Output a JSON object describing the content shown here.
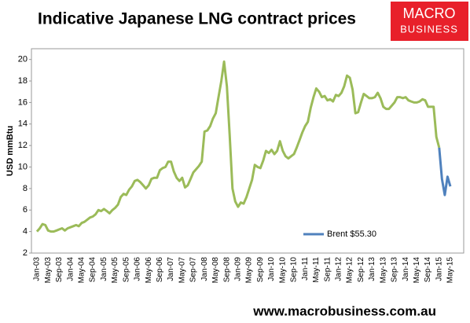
{
  "chart_data": {
    "type": "line",
    "title": "Indicative Japanese LNG contract prices",
    "y_label": "USD mmBtu",
    "categories": [
      "Jan-03",
      null,
      null,
      null,
      "May-03",
      null,
      null,
      null,
      "Sep-03",
      null,
      null,
      null,
      "Jan-04",
      null,
      null,
      null,
      "May-04",
      null,
      null,
      null,
      "Sep-04",
      null,
      null,
      null,
      "Jan-05",
      null,
      null,
      null,
      "May-05",
      null,
      null,
      null,
      "Sep-05",
      null,
      null,
      null,
      "Jan-06",
      null,
      null,
      null,
      "May-06",
      null,
      null,
      null,
      "Sep-06",
      null,
      null,
      null,
      "Jan-07",
      null,
      null,
      null,
      "May-07",
      null,
      null,
      null,
      "Sep-07",
      null,
      null,
      null,
      "Jan-08",
      null,
      null,
      null,
      "May-08",
      null,
      null,
      null,
      "Sep-08",
      null,
      null,
      null,
      "Jan-09",
      null,
      null,
      null,
      "May-09",
      null,
      null,
      null,
      "Sep-09",
      null,
      null,
      null,
      "Jan-10",
      null,
      null,
      null,
      "May-10",
      null,
      null,
      null,
      "Sep-10",
      null,
      null,
      null,
      "Jan-11",
      null,
      null,
      null,
      "May-11",
      null,
      null,
      null,
      "Sep-11",
      null,
      null,
      null,
      "Jan-12",
      null,
      null,
      null,
      "May-12",
      null,
      null,
      null,
      "Sep-12",
      null,
      null,
      null,
      "Jan-13",
      null,
      null,
      null,
      "May-13",
      null,
      null,
      null,
      "Sep-13",
      null,
      null,
      null,
      "Jan-14",
      null,
      null,
      null,
      "May-14",
      null,
      null,
      null,
      "Sep-14",
      null,
      null,
      null,
      "Jan-15",
      null,
      null,
      null,
      "May-15"
    ],
    "series": [
      {
        "color": "#9bbb59",
        "values": [
          4.0,
          4.3,
          4.7,
          4.6,
          4.1,
          4.0,
          4.0,
          4.1,
          4.2,
          4.3,
          4.1,
          4.3,
          4.4,
          4.5,
          4.6,
          4.5,
          4.8,
          4.9,
          5.1,
          5.3,
          5.4,
          5.6,
          6.0,
          5.9,
          6.1,
          5.9,
          5.7,
          6.0,
          6.2,
          6.5,
          7.2,
          7.5,
          7.4,
          7.9,
          8.2,
          8.7,
          8.8,
          8.6,
          8.3,
          8.0,
          8.3,
          8.9,
          9.0,
          9.0,
          9.7,
          9.9,
          10.0,
          10.5,
          10.5,
          9.6,
          9.0,
          8.7,
          9.0,
          8.1,
          8.3,
          8.9,
          9.5,
          9.8,
          10.1,
          10.5,
          13.3,
          13.4,
          13.8,
          14.5,
          15.0,
          16.5,
          18.0,
          19.8,
          17.5,
          13.0,
          8.0,
          6.8,
          6.3,
          6.7,
          6.6,
          7.2,
          8.0,
          8.8,
          10.2,
          10.0,
          9.9,
          10.6,
          11.5,
          11.3,
          11.6,
          11.2,
          11.5,
          12.4,
          11.5,
          11.0,
          10.8,
          11.0,
          11.2,
          11.8,
          12.5,
          13.2,
          13.8,
          14.2,
          15.5,
          16.5,
          17.3,
          17.0,
          16.5,
          16.6,
          16.2,
          16.3,
          16.1,
          16.7,
          16.6,
          16.9,
          17.5,
          18.5,
          18.3,
          17.2,
          15.0,
          15.1,
          16.0,
          16.8,
          16.6,
          16.4,
          16.4,
          16.5,
          16.9,
          16.4,
          15.6,
          15.4,
          15.4,
          15.7,
          16.0,
          16.5,
          16.5,
          16.4,
          16.5,
          16.2,
          16.1,
          16.0,
          16.0,
          16.1,
          16.3,
          16.2,
          15.6,
          15.6,
          15.6,
          12.8,
          11.8,
          null,
          null,
          null,
          null
        ]
      },
      {
        "name": "Brent $55.30",
        "color": "#4f81bd",
        "values": [
          null,
          null,
          null,
          null,
          null,
          null,
          null,
          null,
          null,
          null,
          null,
          null,
          null,
          null,
          null,
          null,
          null,
          null,
          null,
          null,
          null,
          null,
          null,
          null,
          null,
          null,
          null,
          null,
          null,
          null,
          null,
          null,
          null,
          null,
          null,
          null,
          null,
          null,
          null,
          null,
          null,
          null,
          null,
          null,
          null,
          null,
          null,
          null,
          null,
          null,
          null,
          null,
          null,
          null,
          null,
          null,
          null,
          null,
          null,
          null,
          null,
          null,
          null,
          null,
          null,
          null,
          null,
          null,
          null,
          null,
          null,
          null,
          null,
          null,
          null,
          null,
          null,
          null,
          null,
          null,
          null,
          null,
          null,
          null,
          null,
          null,
          null,
          null,
          null,
          null,
          null,
          null,
          null,
          null,
          null,
          null,
          null,
          null,
          null,
          null,
          null,
          null,
          null,
          null,
          null,
          null,
          null,
          null,
          null,
          null,
          null,
          null,
          null,
          null,
          null,
          null,
          null,
          null,
          null,
          null,
          null,
          null,
          null,
          null,
          null,
          null,
          null,
          null,
          null,
          null,
          null,
          null,
          null,
          null,
          null,
          null,
          null,
          null,
          null,
          null,
          null,
          null,
          null,
          null,
          11.8,
          8.9,
          7.4,
          9.1,
          8.2
        ]
      }
    ],
    "ylim": [
      2,
      21
    ],
    "yticks": [
      2,
      4,
      6,
      8,
      10,
      12,
      14,
      16,
      18,
      20
    ],
    "grid": false
  },
  "logo": [
    "MACRO",
    "BUSINESS"
  ],
  "footer": "www.macrobusiness.com.au"
}
